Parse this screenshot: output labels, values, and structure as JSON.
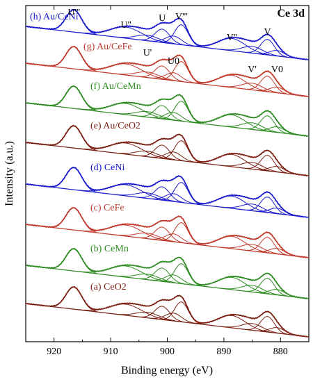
{
  "chart_data": {
    "type": "line",
    "title": "Ce 3d",
    "xlabel": "Binding energy (eV)",
    "ylabel": "Intensity (a.u.)",
    "xlim": [
      925,
      875
    ],
    "x_ticks": [
      920,
      910,
      900,
      890,
      880
    ],
    "x_tick_labels": [
      "920",
      "910",
      "900",
      "890",
      "880"
    ],
    "peak_labels": [
      {
        "text": "U'''",
        "x": 916.5
      },
      {
        "text": "U''",
        "x": 907.3
      },
      {
        "text": "U",
        "x": 900.9
      },
      {
        "text": "V'''",
        "x": 897.5
      },
      {
        "text": "U'",
        "x": 903.5
      },
      {
        "text": "U0",
        "x": 898.9
      },
      {
        "text": "V''",
        "x": 888.6
      },
      {
        "text": "V",
        "x": 882.3
      },
      {
        "text": "V'",
        "x": 885.0
      },
      {
        "text": "V0",
        "x": 880.6
      }
    ],
    "series": [
      {
        "name": "(h) Au/CeNi",
        "color": "#1a1acc",
        "offset": 7
      },
      {
        "name": "(g) Au/CeFe",
        "color": "#c0392b",
        "offset": 6
      },
      {
        "name": "(f) Au/CeMn",
        "color": "#2e8b22",
        "offset": 5
      },
      {
        "name": "(e) Au/CeO2",
        "color": "#7a1f12",
        "offset": 4
      },
      {
        "name": "(d) CeNi",
        "color": "#1a1acc",
        "offset": 3
      },
      {
        "name": "(c) CeFe",
        "color": "#c0392b",
        "offset": 2
      },
      {
        "name": "(b) CeMn",
        "color": "#2e8b22",
        "offset": 1
      },
      {
        "name": "(a) CeO2",
        "color": "#7a1f12",
        "offset": 0
      }
    ],
    "components": [
      {
        "name": "U'''",
        "center": 916.5,
        "amp": 1.0,
        "width": 1.4
      },
      {
        "name": "U''",
        "center": 907.3,
        "amp": 0.5,
        "width": 2.8
      },
      {
        "name": "U'",
        "center": 903.5,
        "amp": 0.25,
        "width": 2.0
      },
      {
        "name": "U",
        "center": 900.9,
        "amp": 0.6,
        "width": 1.3
      },
      {
        "name": "U0",
        "center": 898.9,
        "amp": 0.35,
        "width": 1.4
      },
      {
        "name": "V'''",
        "center": 897.5,
        "amp": 0.9,
        "width": 1.2
      },
      {
        "name": "V''",
        "center": 888.6,
        "amp": 0.55,
        "width": 2.4
      },
      {
        "name": "V'",
        "center": 885.0,
        "amp": 0.3,
        "width": 1.8
      },
      {
        "name": "V",
        "center": 882.3,
        "amp": 0.7,
        "width": 1.2
      },
      {
        "name": "V0",
        "center": 880.6,
        "amp": 0.25,
        "width": 1.3
      }
    ]
  }
}
